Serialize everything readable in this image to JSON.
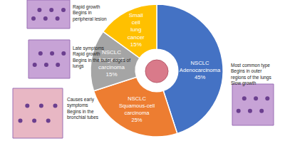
{
  "chart_data": {
    "type": "pie",
    "categories": [
      "NSCLC Adenocarcinoma",
      "NSCLC Squamous-cell carcinoma",
      "NSCLC Large-cell carcinoma",
      "Small cell lung cancer"
    ],
    "values": [
      45,
      25,
      15,
      15
    ],
    "value_labels": [
      "45%",
      "25%",
      "15%",
      "15%"
    ],
    "colors": [
      "#4472c4",
      "#ed7d31",
      "#a5a5a5",
      "#ffc000"
    ],
    "data_labels": true,
    "annotations": [
      {
        "category": "NSCLC Adenocarcinoma",
        "lines": [
          "Most common type",
          "Begins in outer",
          "regions of the lungs",
          "Slow growth"
        ]
      },
      {
        "category": "NSCLC Squamous-cell carcinoma",
        "lines": [
          "Causes early",
          "symptoms",
          "Begins in the",
          "bronchial tubes"
        ]
      },
      {
        "category": "NSCLC Large-cell carcinoma",
        "lines": [
          "Late symptoms",
          "Rapid growth",
          "Begins in the outer edges of",
          "lungs"
        ]
      },
      {
        "category": "Small cell lung cancer",
        "lines": [
          "Rapid growth",
          "Begins in",
          "peripheral lesion"
        ]
      }
    ]
  }
}
